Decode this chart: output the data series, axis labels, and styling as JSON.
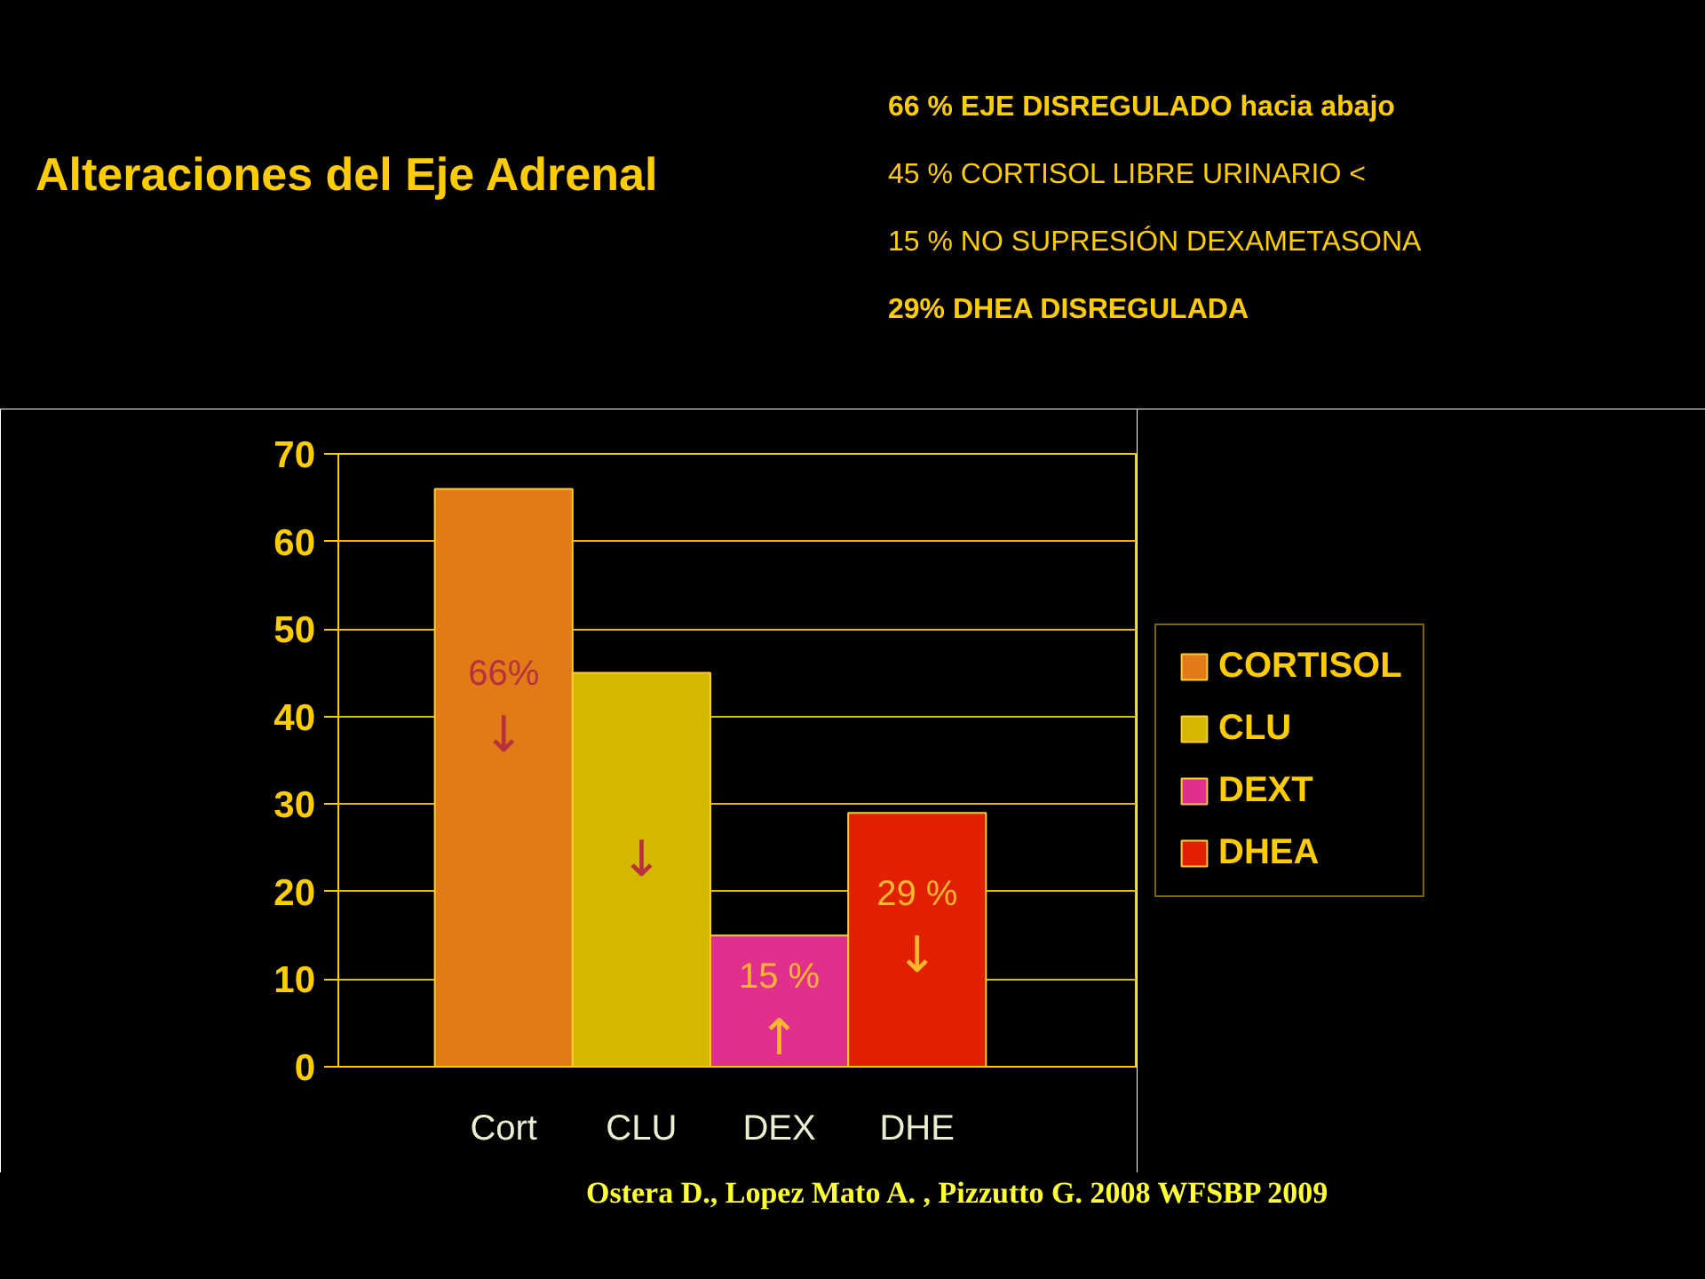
{
  "chart_data": {
    "type": "bar",
    "title": "Alteraciones del Eje Adrenal",
    "categories": [
      "Cort",
      "CLU",
      "DEX",
      "DHE"
    ],
    "series": [
      {
        "name": "CORTISOL",
        "color": "#e07b18",
        "values": [
          66,
          null,
          null,
          null
        ],
        "value_labels": [
          "66%",
          null,
          null,
          null
        ]
      },
      {
        "name": "CLU",
        "color": "#d4b800",
        "values": [
          null,
          45,
          null,
          null
        ]
      },
      {
        "name": "DEXT",
        "color": "#e0308c",
        "values": [
          null,
          null,
          15,
          null
        ],
        "value_labels": [
          null,
          null,
          "15 %",
          null
        ]
      },
      {
        "name": "DHEA",
        "color": "#e02000",
        "values": [
          null,
          null,
          null,
          29
        ],
        "value_labels": [
          null,
          null,
          null,
          "29 %"
        ]
      }
    ],
    "ylim": [
      0,
      70
    ],
    "yticks": [
      0,
      10,
      20,
      30,
      40,
      50,
      60,
      70
    ],
    "grid": "y",
    "legend": "right",
    "annotations": [
      "↓",
      "↓",
      "↑",
      "↓",
      "66 % EJE DISREGULADO hacia abajo",
      "45 % CORTISOL LIBRE URINARIO <",
      "15 % NO SUPRESIÓN DEXAMETASONA",
      "29% DHEA DISREGULADA",
      "Ostera D., Lopez Mato A. , Pizzutto G. 2008 WFSBP 2009"
    ]
  }
}
